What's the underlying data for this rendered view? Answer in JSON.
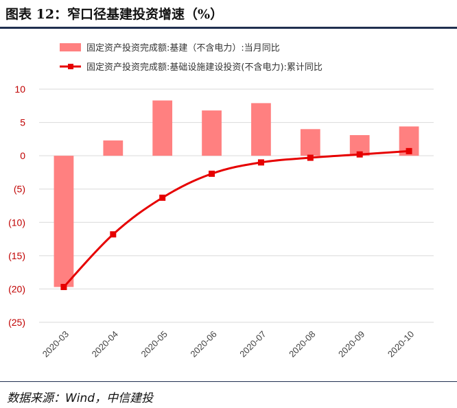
{
  "header": {
    "title": "图表 12：窄口径基建投资增速（%）"
  },
  "footer": {
    "source": "数据来源：Wind，中信建投"
  },
  "colors": {
    "bar": "#ff8080",
    "line": "#e60000",
    "marker": "#e60000",
    "tick_negative": "#c00000",
    "grid": "#d9d9d9"
  },
  "chart_data": {
    "type": "bar",
    "categories": [
      "2020-03",
      "2020-04",
      "2020-05",
      "2020-06",
      "2020-07",
      "2020-08",
      "2020-09",
      "2020-10"
    ],
    "series": [
      {
        "name": "固定资产投资完成额:基建（不含电力）:当月同比",
        "type": "bar",
        "values": [
          -19.7,
          2.3,
          8.3,
          6.8,
          7.9,
          4.0,
          3.1,
          4.4
        ]
      },
      {
        "name": "固定资产投资完成额:基础设施建设投资(不含电力):累计同比",
        "type": "line",
        "values": [
          -19.7,
          -11.8,
          -6.3,
          -2.7,
          -1.0,
          -0.3,
          0.2,
          0.7
        ]
      }
    ],
    "ylim": [
      -25,
      10
    ],
    "yticks": [
      10,
      5,
      0,
      -5,
      -10,
      -15,
      -20,
      -25
    ],
    "ytick_labels": [
      "10",
      "5",
      "0",
      "(5)",
      "(10)",
      "(15)",
      "(20)",
      "(25)"
    ],
    "grid": true,
    "legend_position": "top"
  }
}
